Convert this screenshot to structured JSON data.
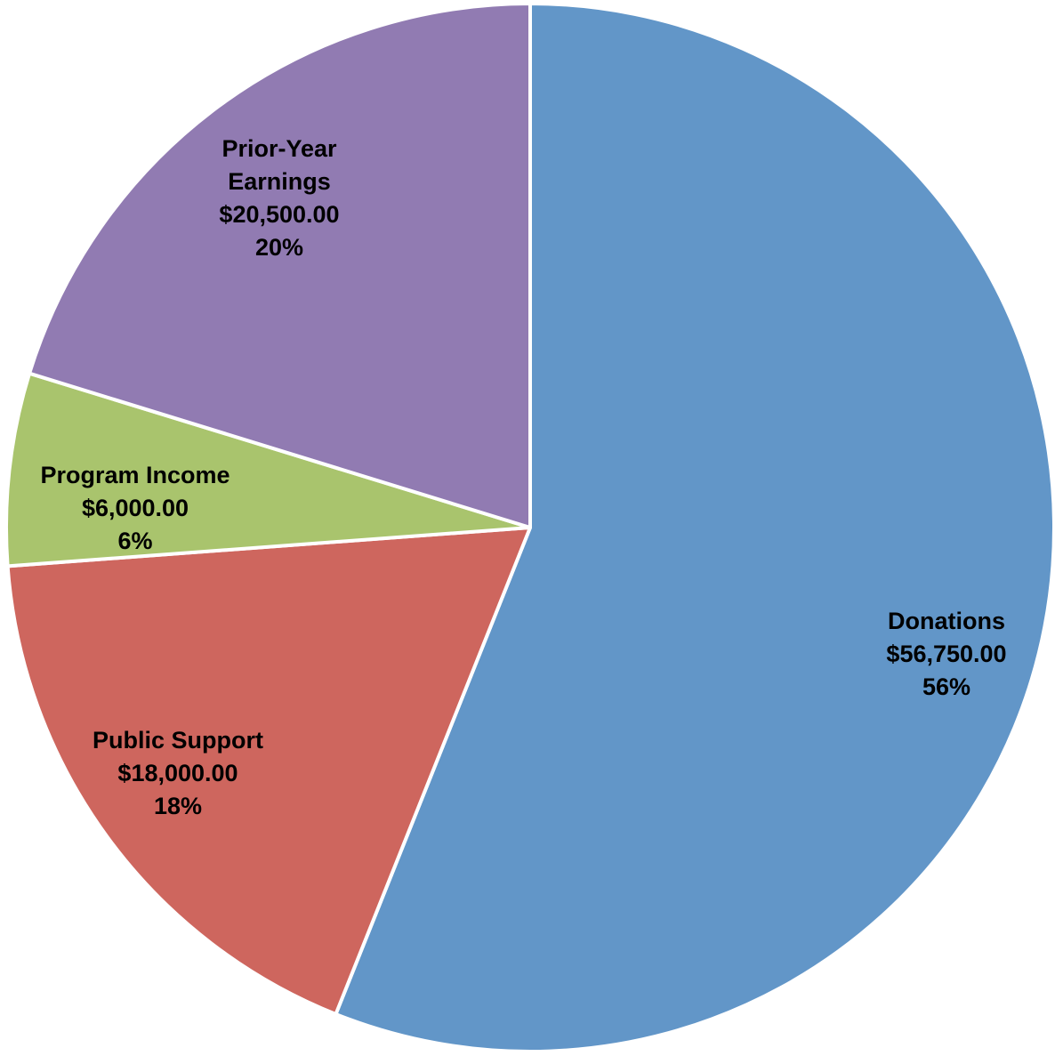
{
  "chart_data": {
    "type": "pie",
    "title": "",
    "slices": [
      {
        "name": "Donations",
        "value": 56750.0,
        "value_label": "$56,750.00",
        "percent_label": "56%",
        "color": "#6296C8"
      },
      {
        "name": "Public Support",
        "value": 18000.0,
        "value_label": "$18,000.00",
        "percent_label": "18%",
        "color": "#CE665E"
      },
      {
        "name": "Program Income",
        "value": 6000.0,
        "value_label": "$6,000.00",
        "percent_label": "6%",
        "color": "#A9C46D"
      },
      {
        "name": "Prior-Year Earnings",
        "name_lines": [
          "Prior-Year",
          "Earnings"
        ],
        "value": 20500.0,
        "value_label": "$20,500.00",
        "percent_label": "20%",
        "color": "#917BB2"
      }
    ],
    "start_angle": "12 o'clock",
    "direction": "clockwise",
    "separator_color": "#FFFFFF",
    "legend": "none"
  }
}
